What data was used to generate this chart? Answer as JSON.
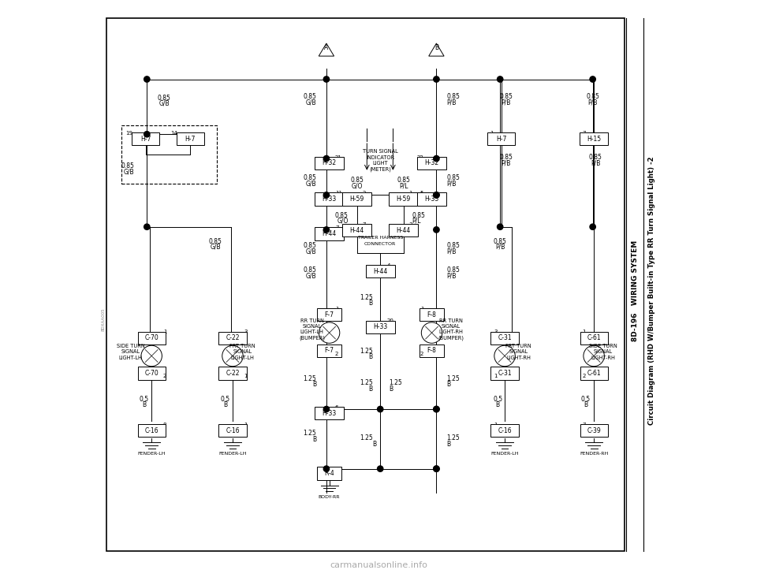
{
  "page_bg": "#ffffff",
  "diagram_bg": "#ffffff",
  "border_color": "#000000",
  "line_color": "#000000",
  "text_color": "#000000",
  "sidebar_text1": "8D-196   WIRING SYSTEM",
  "sidebar_text2": "Circuit Diagram (RHD W/Bumper Built-in Type RR Turn Signal Light) -2",
  "watermark": "carmanualsonline.info",
  "watermark_color": "#aaaaaa",
  "side_code": "8DXAA005"
}
